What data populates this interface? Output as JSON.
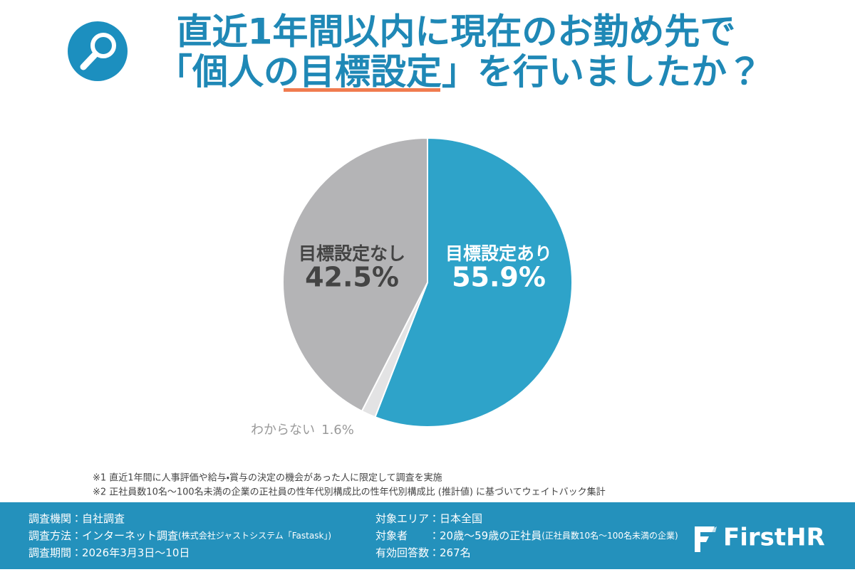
{
  "title_lines": [
    "直近1年間以内に現在のお勤め先で",
    [
      "「個人の",
      "目標設定",
      "」を行いましたか？"
    ]
  ],
  "chart_data": {
    "type": "pie",
    "categories": [
      "目標設定あり",
      "わからない",
      "目標設定なし"
    ],
    "values": [
      55.9,
      1.6,
      42.5
    ],
    "value_labels": [
      "55.9%",
      "1.6%",
      "42.5%"
    ],
    "colors": [
      "#2ea3c9",
      "#e3e3e4",
      "#b4b4b6"
    ]
  },
  "notes": [
    "※1  直近1年間に人事評価や給与・賞与の決定の機会があった人に限定して調査を実施",
    "※2  正社員数10名〜100名未満の企業の正社員の性年代別構成比の性年代別構成比 (推計値) に基づいてウェイトバック集計"
  ],
  "footer": {
    "left": [
      {
        "label": "調査機関：",
        "value": "自社調査"
      },
      {
        "label": "調査方法：",
        "value": "インターネット調査",
        "note": "(株式会社ジャストシステム「Fastask」)"
      },
      {
        "label": "調査期間：",
        "value": "2026年3月3日〜10日"
      }
    ],
    "right": [
      {
        "label": "対象エリア：",
        "value": "日本全国"
      },
      {
        "label": "対象者　　：",
        "value": "20歳〜59歳の正社員",
        "note": "(正社員数10名〜100名未満の企業)"
      },
      {
        "label": "有効回答数：",
        "value": "267名"
      }
    ],
    "logo": "FirstHR"
  }
}
